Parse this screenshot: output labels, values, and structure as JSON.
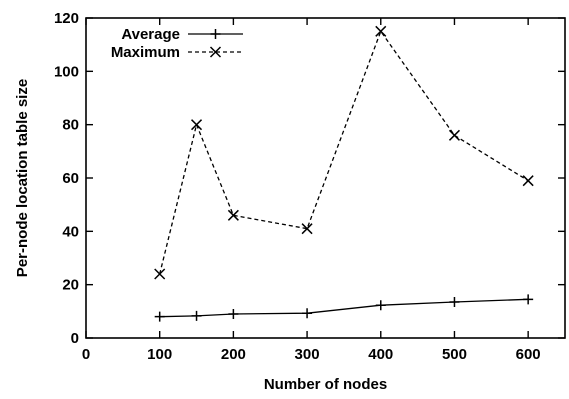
{
  "chart_data": {
    "type": "line",
    "xlabel": "Number of nodes",
    "ylabel": "Per-node location table size",
    "xlim": [
      0,
      650
    ],
    "ylim": [
      0,
      120
    ],
    "xticks": [
      0,
      100,
      200,
      300,
      400,
      500,
      600
    ],
    "yticks": [
      0,
      20,
      40,
      60,
      80,
      100,
      120
    ],
    "grid": false,
    "legend_position": "top-left",
    "series": [
      {
        "name": "Average",
        "marker": "plus",
        "line_style": "solid",
        "x": [
          100,
          150,
          200,
          300,
          400,
          500,
          600
        ],
        "y": [
          8,
          8.3,
          9,
          9.3,
          12.3,
          13.5,
          14.5
        ]
      },
      {
        "name": "Maximum",
        "marker": "cross",
        "line_style": "dashed",
        "x": [
          100,
          150,
          200,
          300,
          400,
          500,
          600
        ],
        "y": [
          24,
          80,
          46,
          41,
          115,
          76,
          59
        ]
      }
    ]
  }
}
